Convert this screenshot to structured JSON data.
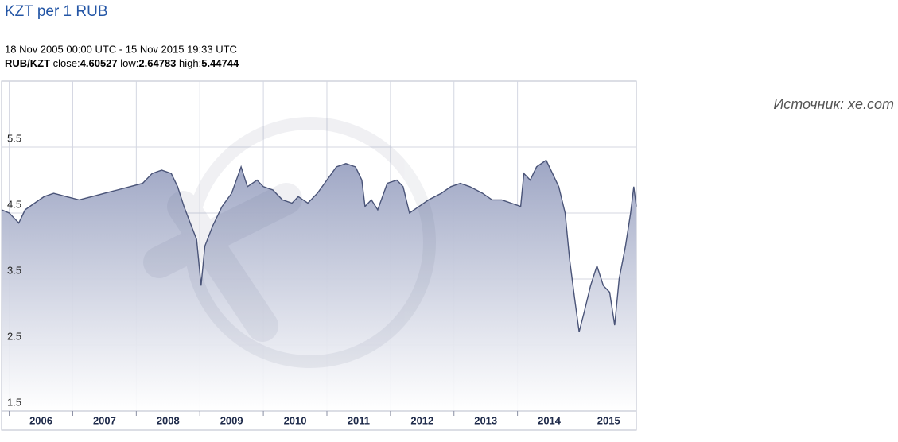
{
  "header": {
    "title": "KZT per 1 RUB",
    "range": "18 Nov 2005 00:00 UTC - 15 Nov 2015 19:33 UTC"
  },
  "stats": {
    "pair": "RUB/KZT",
    "close_label": "close:",
    "close": 4.60527,
    "low_label": "low:",
    "low": 2.64783,
    "high_label": "high:",
    "high": 5.44744
  },
  "source": "Источник: xe.com",
  "chart_data": {
    "type": "area",
    "color": "#4a5478",
    "fill": "#9ea6c4",
    "grid": true,
    "xlim": [
      2005.88,
      2015.87
    ],
    "xticks": [
      2006,
      2007,
      2008,
      2009,
      2010,
      2011,
      2012,
      2013,
      2014,
      2015
    ],
    "ylim": [
      1.5,
      6.5
    ],
    "yticks": [
      1.5,
      2.5,
      3.5,
      4.5,
      5.5
    ],
    "x": [
      2005.88,
      2006.0,
      2006.1,
      2006.15,
      2006.25,
      2006.4,
      2006.55,
      2006.7,
      2006.9,
      2007.1,
      2007.3,
      2007.5,
      2007.7,
      2007.9,
      2008.1,
      2008.25,
      2008.4,
      2008.55,
      2008.65,
      2008.75,
      2008.85,
      2008.95,
      2009.02,
      2009.08,
      2009.2,
      2009.35,
      2009.5,
      2009.65,
      2009.75,
      2009.9,
      2010.0,
      2010.15,
      2010.3,
      2010.45,
      2010.55,
      2010.7,
      2010.85,
      2011.0,
      2011.15,
      2011.3,
      2011.45,
      2011.55,
      2011.6,
      2011.7,
      2011.8,
      2011.95,
      2012.1,
      2012.2,
      2012.3,
      2012.45,
      2012.6,
      2012.8,
      2012.95,
      2013.1,
      2013.25,
      2013.45,
      2013.6,
      2013.75,
      2013.9,
      2014.05,
      2014.1,
      2014.2,
      2014.3,
      2014.45,
      2014.55,
      2014.65,
      2014.75,
      2014.82,
      2014.9,
      2014.97,
      2015.05,
      2015.15,
      2015.25,
      2015.35,
      2015.45,
      2015.53,
      2015.6,
      2015.7,
      2015.78,
      2015.83,
      2015.87
    ],
    "values": [
      4.55,
      4.5,
      4.4,
      4.35,
      4.55,
      4.65,
      4.75,
      4.8,
      4.75,
      4.7,
      4.75,
      4.8,
      4.85,
      4.9,
      4.95,
      5.1,
      5.15,
      5.1,
      4.9,
      4.6,
      4.35,
      4.1,
      3.4,
      4.0,
      4.3,
      4.6,
      4.8,
      5.2,
      4.9,
      5.0,
      4.9,
      4.85,
      4.7,
      4.65,
      4.75,
      4.65,
      4.8,
      5.0,
      5.2,
      5.25,
      5.2,
      5.0,
      4.6,
      4.7,
      4.55,
      4.95,
      5.0,
      4.9,
      4.5,
      4.6,
      4.7,
      4.8,
      4.9,
      4.95,
      4.9,
      4.8,
      4.7,
      4.7,
      4.65,
      4.6,
      5.1,
      5.0,
      5.2,
      5.3,
      5.1,
      4.9,
      4.5,
      3.8,
      3.2,
      2.7,
      3.0,
      3.4,
      3.7,
      3.4,
      3.3,
      2.8,
      3.5,
      4.0,
      4.5,
      4.9,
      4.6
    ]
  }
}
